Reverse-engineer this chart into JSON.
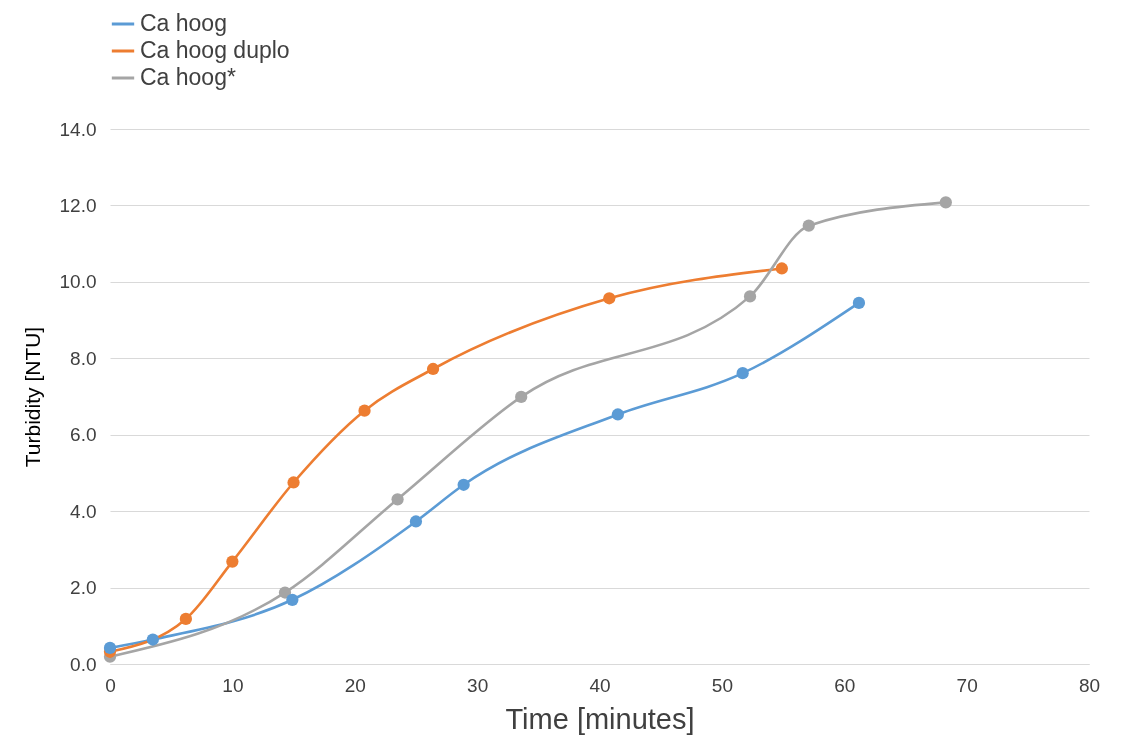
{
  "chart_data": {
    "type": "line",
    "xlabel": "Time [minutes]",
    "ylabel": "Turbidity [NTU]",
    "xlim": [
      0,
      80
    ],
    "xticks": [
      0,
      10,
      20,
      30,
      40,
      50,
      60,
      70,
      80
    ],
    "ylim": [
      0,
      14
    ],
    "yticks": [
      {
        "value": 0,
        "label": "0.0"
      },
      {
        "value": 2,
        "label": "2.0"
      },
      {
        "value": 4,
        "label": "4.0"
      },
      {
        "value": 6,
        "label": "6.0"
      },
      {
        "value": 8,
        "label": "8.0"
      },
      {
        "value": 10,
        "label": "10.0"
      },
      {
        "value": 12,
        "label": "12.0"
      },
      {
        "value": 14,
        "label": "14.0"
      }
    ],
    "grid": "y",
    "legend": "top left",
    "marker": "circle",
    "line_style": "solid",
    "series": [
      {
        "name": "Ca hoog",
        "color": "#5b9bd5",
        "x": [
          0,
          3.5,
          14.9,
          25.0,
          28.9,
          41.5,
          51.7,
          61.2
        ],
        "values": [
          0.42,
          0.64,
          1.68,
          3.73,
          4.69,
          6.53,
          7.61,
          9.45
        ]
      },
      {
        "name": "Ca hoog duplo",
        "color": "#ed7d31",
        "x": [
          0,
          6.2,
          10.0,
          15.0,
          20.8,
          26.4,
          40.8,
          54.9
        ],
        "values": [
          0.32,
          1.18,
          2.68,
          4.75,
          6.63,
          7.72,
          9.57,
          10.35
        ]
      },
      {
        "name": "Ca hoog*",
        "color": "#a5a5a5",
        "x": [
          0,
          14.3,
          23.5,
          33.6,
          52.3,
          57.1,
          68.3
        ],
        "values": [
          0.19,
          1.87,
          4.31,
          6.99,
          9.62,
          11.47,
          12.08
        ]
      }
    ]
  }
}
